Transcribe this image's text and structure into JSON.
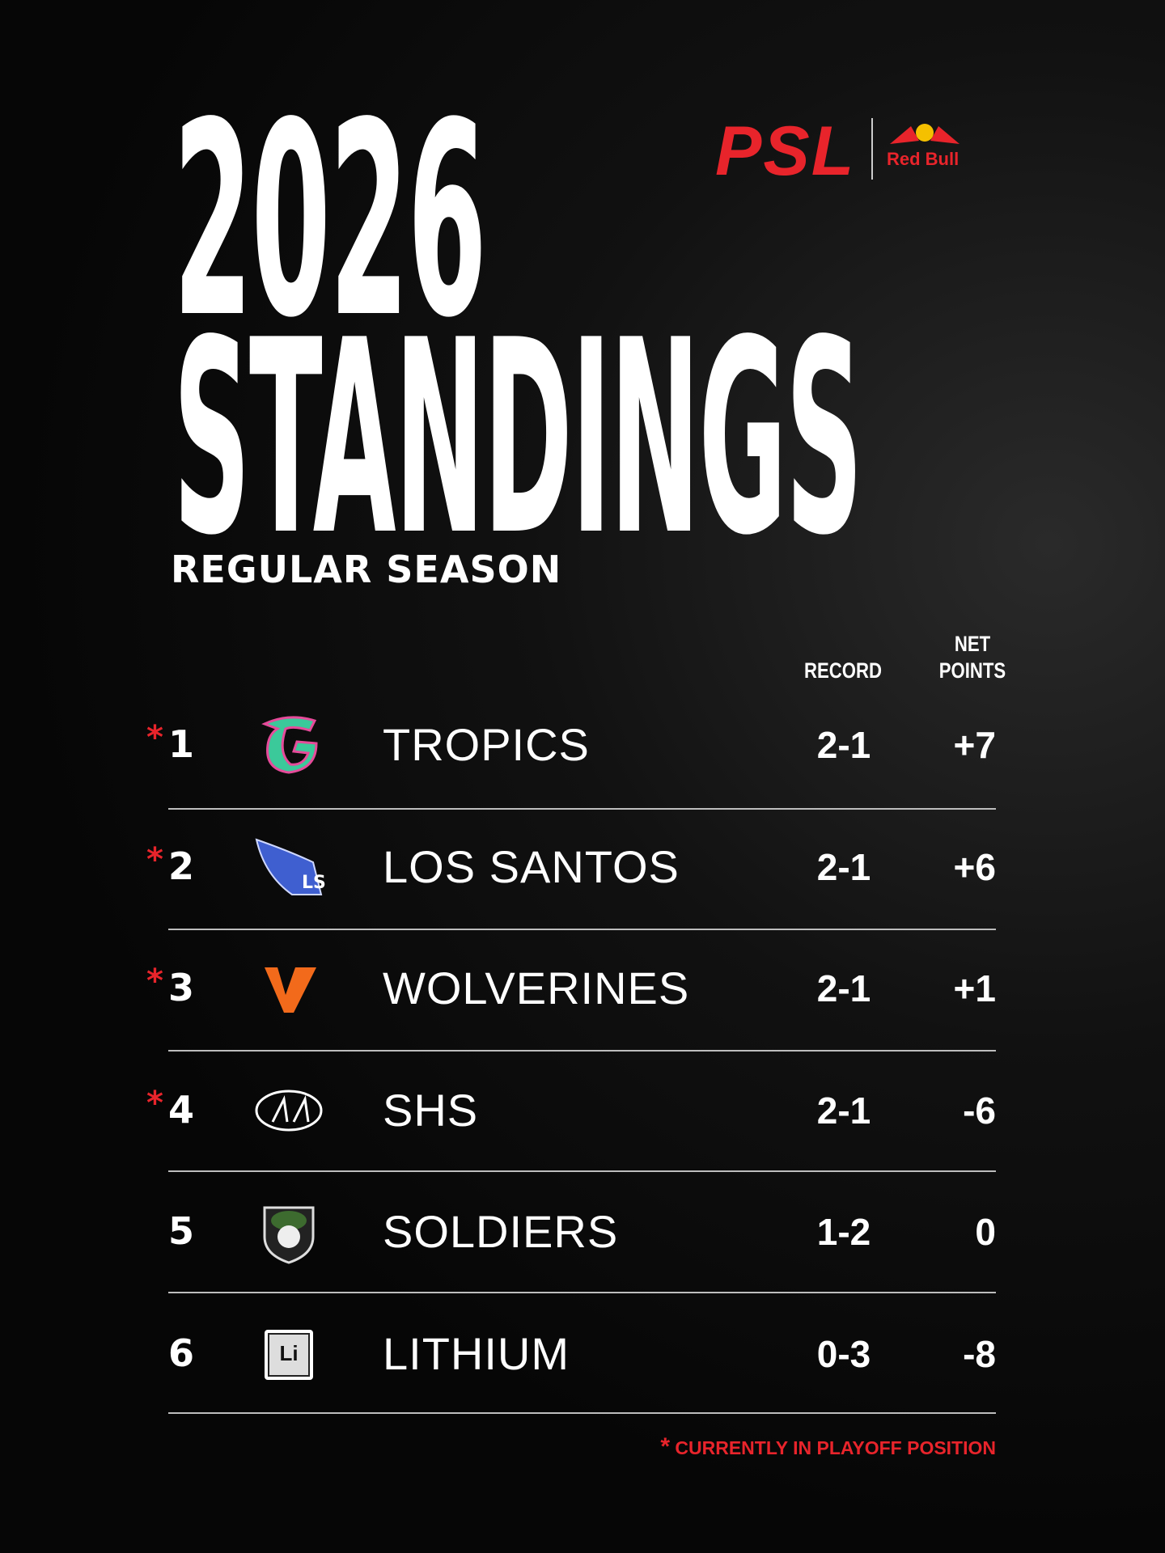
{
  "header": {
    "title_line1": "2026",
    "title_line2": "STANDINGS",
    "subtitle": "REGULAR SEASON",
    "brand": "PSL",
    "sponsor": "Red Bull"
  },
  "table": {
    "columns": {
      "record": "RECORD",
      "net_points": "NET POINTS"
    },
    "rows": [
      {
        "mark": "*",
        "rank": "1",
        "team": "TROPICS",
        "record": "2-1",
        "net": "+7"
      },
      {
        "mark": "*",
        "rank": "2",
        "team": "LOS SANTOS",
        "record": "2-1",
        "net": "+6"
      },
      {
        "mark": "*",
        "rank": "3",
        "team": "WOLVERINES",
        "record": "2-1",
        "net": "+1"
      },
      {
        "mark": "*",
        "rank": "4",
        "team": "SHS",
        "record": "2-1",
        "net": "-6"
      },
      {
        "rank": "5",
        "team": "SOLDIERS",
        "record": "1-2",
        "net": "0"
      },
      {
        "rank": "6",
        "team": "LITHIUM",
        "record": "0-3",
        "net": "-8",
        "logo_label": "Li"
      }
    ]
  },
  "footnote": {
    "mark": "*",
    "text": "CURRENTLY IN PLAYOFF POSITION"
  }
}
